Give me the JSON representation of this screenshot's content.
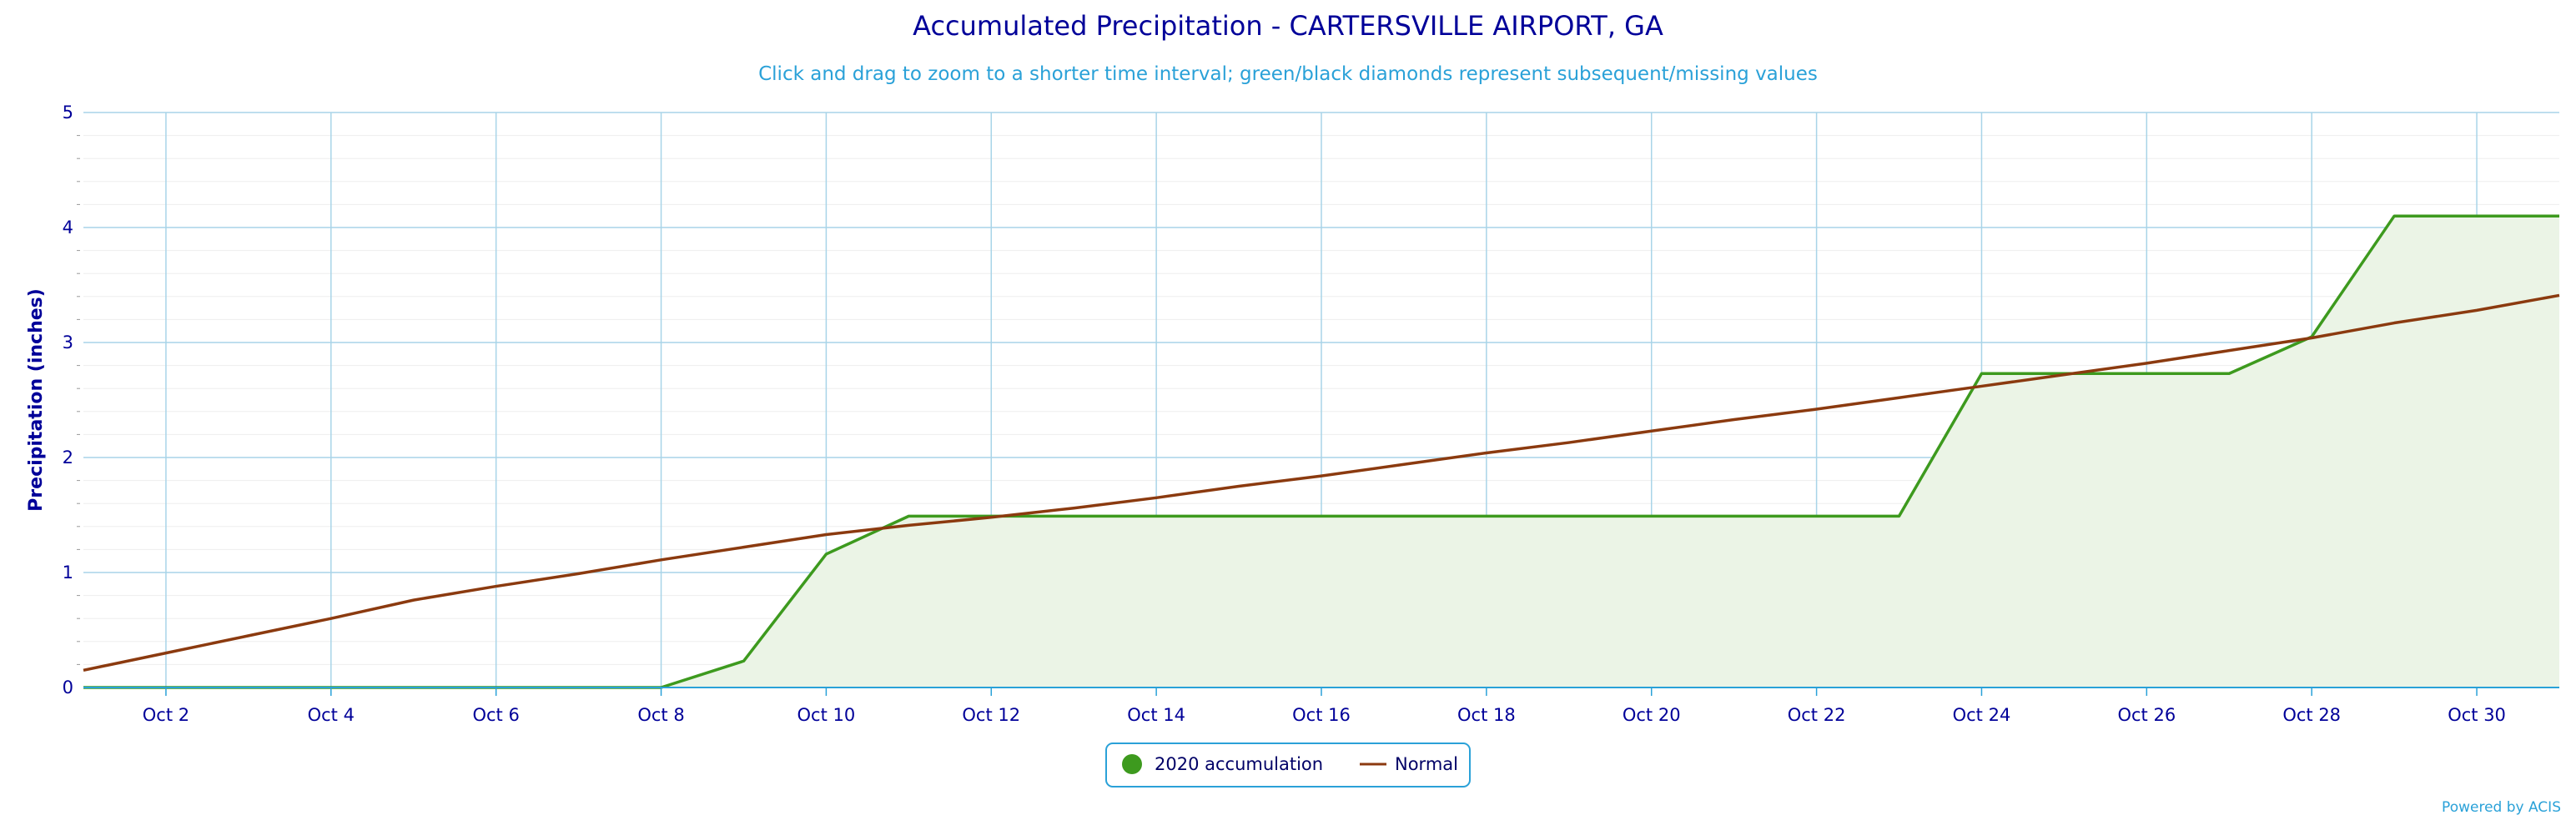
{
  "chart_data": {
    "type": "area",
    "title": "Accumulated Precipitation - CARTERSVILLE AIRPORT, GA",
    "subtitle": "Click and drag to zoom to a shorter time interval; green/black diamonds represent subsequent/missing values",
    "xlabel": "",
    "ylabel": "Precipitation (inches)",
    "ylim": [
      0,
      5
    ],
    "yticks": [
      "0",
      "1",
      "2",
      "3",
      "4",
      "5"
    ],
    "xlim": [
      "Oct 1",
      "Oct 31"
    ],
    "xticks": [
      "Oct 2",
      "Oct 4",
      "Oct 6",
      "Oct 8",
      "Oct 10",
      "Oct 12",
      "Oct 14",
      "Oct 16",
      "Oct 18",
      "Oct 20",
      "Oct 22",
      "Oct 24",
      "Oct 26",
      "Oct 28",
      "Oct 30"
    ],
    "grid": true,
    "legend_position": "bottom-center",
    "x": [
      "Oct 1",
      "Oct 2",
      "Oct 3",
      "Oct 4",
      "Oct 5",
      "Oct 6",
      "Oct 7",
      "Oct 8",
      "Oct 9",
      "Oct 10",
      "Oct 11",
      "Oct 12",
      "Oct 13",
      "Oct 14",
      "Oct 15",
      "Oct 16",
      "Oct 17",
      "Oct 18",
      "Oct 19",
      "Oct 20",
      "Oct 21",
      "Oct 22",
      "Oct 23",
      "Oct 24",
      "Oct 25",
      "Oct 26",
      "Oct 27",
      "Oct 28",
      "Oct 29",
      "Oct 30",
      "Oct 31"
    ],
    "series": [
      {
        "name": "2020 accumulation",
        "color": "#3d9a1e",
        "fill": "#ebf4e6",
        "values": [
          0,
          0,
          0,
          0,
          0,
          0,
          0,
          0,
          0.23,
          1.16,
          1.49,
          1.49,
          1.49,
          1.49,
          1.49,
          1.49,
          1.49,
          1.49,
          1.49,
          1.49,
          1.49,
          1.49,
          1.49,
          2.73,
          2.73,
          2.73,
          2.73,
          3.05,
          4.1,
          4.1,
          4.1
        ]
      },
      {
        "name": "Normal",
        "color": "#8b3a0f",
        "values": [
          0.15,
          0.3,
          0.45,
          0.6,
          0.76,
          0.88,
          0.99,
          1.11,
          1.22,
          1.33,
          1.41,
          1.48,
          1.56,
          1.65,
          1.75,
          1.84,
          1.94,
          2.04,
          2.13,
          2.23,
          2.33,
          2.42,
          2.52,
          2.62,
          2.72,
          2.82,
          2.93,
          3.04,
          3.17,
          3.28,
          3.41
        ]
      }
    ]
  },
  "credit": "Powered by ACIS",
  "colors": {
    "title": "#000099",
    "subtitle": "#2aa1d8",
    "grid_major": "#a8d4e8",
    "grid_minor": "#eeeeee",
    "axis_line": "#2aa1d8",
    "legend_border": "#2aa1d8"
  }
}
